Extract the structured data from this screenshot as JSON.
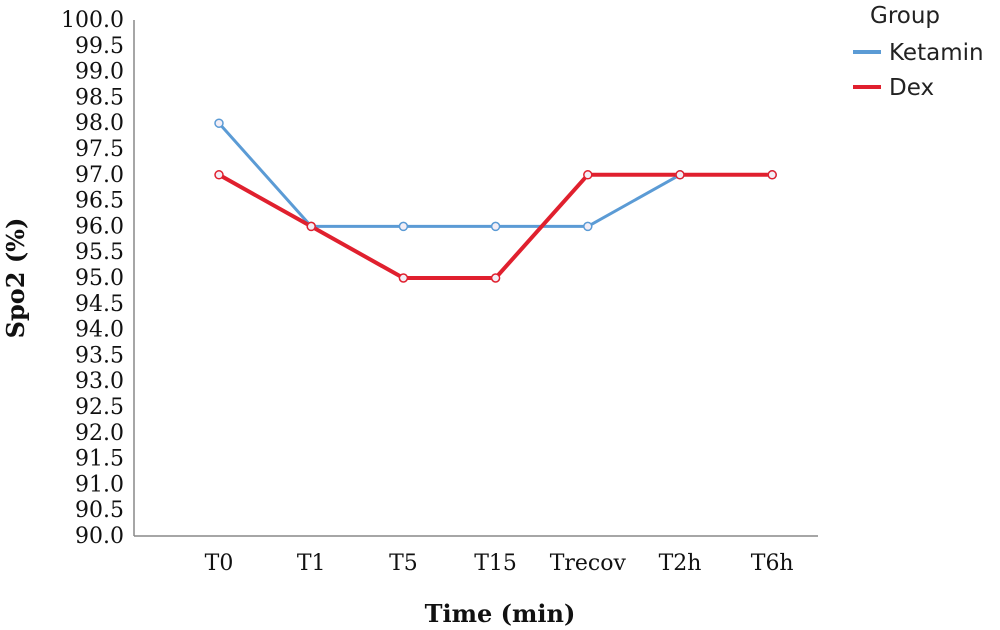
{
  "chart_data": {
    "type": "line",
    "xlabel": "Time (min)",
    "ylabel": "Spo2 (%)",
    "categories": [
      "T0",
      "T1",
      "T5",
      "T15",
      "Trecov",
      "T2h",
      "T6h"
    ],
    "ylim": [
      90.0,
      100.0
    ],
    "yticks": [
      "90.0",
      "90.5",
      "91.0",
      "91.5",
      "92.0",
      "92.5",
      "93.0",
      "93.5",
      "94.0",
      "94.5",
      "95.0",
      "95.5",
      "96.0",
      "96.5",
      "97.0",
      "97.5",
      "98.0",
      "98.5",
      "99.0",
      "99.5",
      "100.0"
    ],
    "grid": false,
    "legend": {
      "title": "Group",
      "placement": "top-right"
    },
    "series": [
      {
        "name": "Ketamin",
        "color": "#5b9bd5",
        "values": [
          98,
          96,
          96,
          96,
          96,
          97,
          97
        ]
      },
      {
        "name": "Dex",
        "color": "#e0202e",
        "values": [
          97,
          96,
          95,
          95,
          97,
          97,
          97
        ]
      }
    ]
  }
}
